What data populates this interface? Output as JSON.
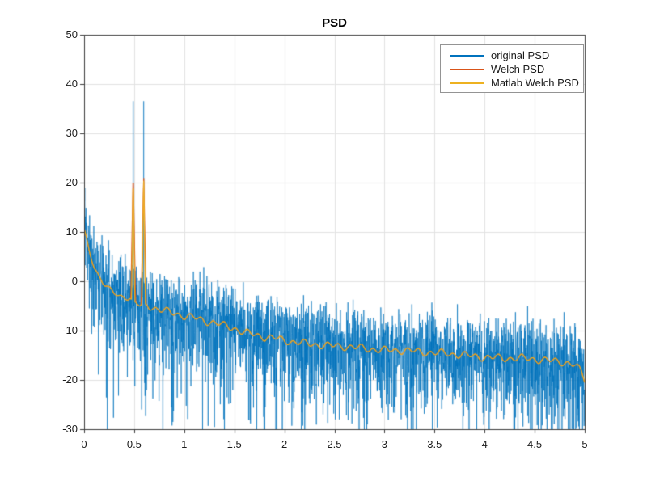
{
  "figure": {
    "title": "PSD",
    "background": "#ffffff",
    "window_edge_color": "#c9c9c9"
  },
  "chart_data": {
    "type": "line",
    "title": "PSD",
    "xlabel": "",
    "ylabel": "",
    "xlim": [
      0,
      5
    ],
    "ylim": [
      -30,
      50
    ],
    "xticks": [
      "0",
      "0.5",
      "1",
      "1.5",
      "2",
      "2.5",
      "3",
      "3.5",
      "4",
      "4.5",
      "5"
    ],
    "xtick_values": [
      0,
      0.5,
      1,
      1.5,
      2,
      2.5,
      3,
      3.5,
      4,
      4.5,
      5
    ],
    "yticks": [
      "-30",
      "-20",
      "-10",
      "0",
      "10",
      "20",
      "30",
      "40",
      "50"
    ],
    "ytick_values": [
      -30,
      -20,
      -10,
      0,
      10,
      20,
      30,
      40,
      50
    ],
    "grid": true,
    "grid_color": "#e2e2e2",
    "axis_color": "#3c3c3c",
    "tick_label_color": "#1c1c1c",
    "legend": {
      "position": "top-right",
      "border_color": "#949494",
      "background": "#ffffff"
    },
    "mean_trend_db": [
      [
        0,
        10.5
      ],
      [
        0.05,
        6
      ],
      [
        0.1,
        3
      ],
      [
        0.15,
        1
      ],
      [
        0.2,
        -0.5
      ],
      [
        0.25,
        -1.5
      ],
      [
        0.3,
        -2.5
      ],
      [
        0.35,
        -3
      ],
      [
        0.4,
        -3.2
      ],
      [
        0.45,
        -3.4
      ],
      [
        0.5,
        -4
      ],
      [
        0.55,
        -5
      ],
      [
        0.6,
        -4.6
      ],
      [
        0.65,
        -5
      ],
      [
        0.7,
        -5.4
      ],
      [
        0.8,
        -6
      ],
      [
        0.9,
        -6.5
      ],
      [
        1,
        -7
      ],
      [
        1.1,
        -7.4
      ],
      [
        1.2,
        -8
      ],
      [
        1.3,
        -8.4
      ],
      [
        1.4,
        -9
      ],
      [
        1.5,
        -9.5
      ],
      [
        1.6,
        -10.4
      ],
      [
        1.7,
        -10.8
      ],
      [
        1.8,
        -11.3
      ],
      [
        1.9,
        -11.5
      ],
      [
        2,
        -12
      ],
      [
        2.2,
        -12.6
      ],
      [
        2.4,
        -13
      ],
      [
        2.6,
        -13.2
      ],
      [
        2.8,
        -13.6
      ],
      [
        3,
        -14
      ],
      [
        3.2,
        -14
      ],
      [
        3.4,
        -14.4
      ],
      [
        3.6,
        -14.6
      ],
      [
        3.8,
        -15
      ],
      [
        4,
        -15.4
      ],
      [
        4.2,
        -15.6
      ],
      [
        4.4,
        -15.6
      ],
      [
        4.6,
        -16
      ],
      [
        4.8,
        -16.4
      ],
      [
        4.9,
        -17
      ],
      [
        4.97,
        -18.5
      ],
      [
        5,
        -20
      ]
    ],
    "series": [
      {
        "name": "original PSD",
        "color": "#0072BD",
        "kind": "periodogram-noise",
        "line_width": 0.8,
        "spikes": [
          {
            "x": 0.49,
            "peak_db": 36.5
          },
          {
            "x": 0.595,
            "peak_db": 36.5
          }
        ],
        "noise": {
          "distribution": "exponential_dB",
          "seed": 11,
          "points": 3000,
          "offset_db": 1.5,
          "spread": 1.05,
          "edge_boost_db": 8,
          "edge_scale": 0.012
        }
      },
      {
        "name": "Welch PSD",
        "color": "#D95319",
        "kind": "smooth",
        "line_width": 1.2,
        "peaks": [
          {
            "x": 0.49,
            "peak_db": 22,
            "half_width": 0.026
          },
          {
            "x": 0.595,
            "peak_db": 22,
            "half_width": 0.026
          }
        ]
      },
      {
        "name": "Matlab Welch PSD",
        "color": "#EDB120",
        "kind": "smooth",
        "line_width": 1.2,
        "peaks": [
          {
            "x": 0.49,
            "peak_db": 22,
            "half_width": 0.017
          },
          {
            "x": 0.595,
            "peak_db": 22,
            "half_width": 0.017
          }
        ],
        "wiggle": {
          "amp1": 0.5,
          "freq1": 55,
          "amp2": 0.35,
          "freq2": 23
        }
      }
    ]
  }
}
